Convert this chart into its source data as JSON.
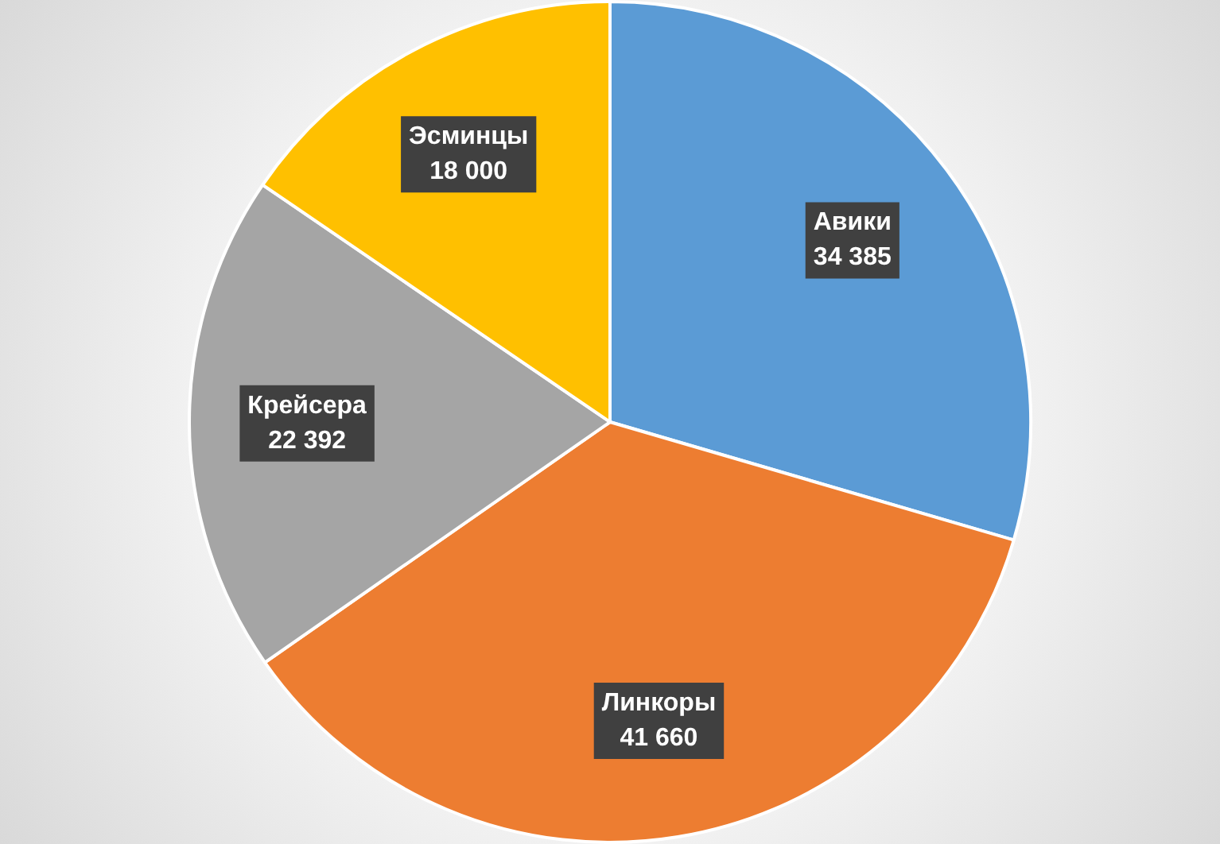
{
  "chart_data": {
    "type": "pie",
    "categories": [
      "Авики",
      "Линкоры",
      "Крейсера",
      "Эсминцы"
    ],
    "values": [
      34385,
      41660,
      22392,
      18000
    ],
    "value_labels": [
      "34 385",
      "41 660",
      "22 392",
      "18 000"
    ],
    "colors": [
      "#5b9bd5",
      "#ed7d31",
      "#a5a5a5",
      "#ffc000"
    ],
    "legend": false
  }
}
